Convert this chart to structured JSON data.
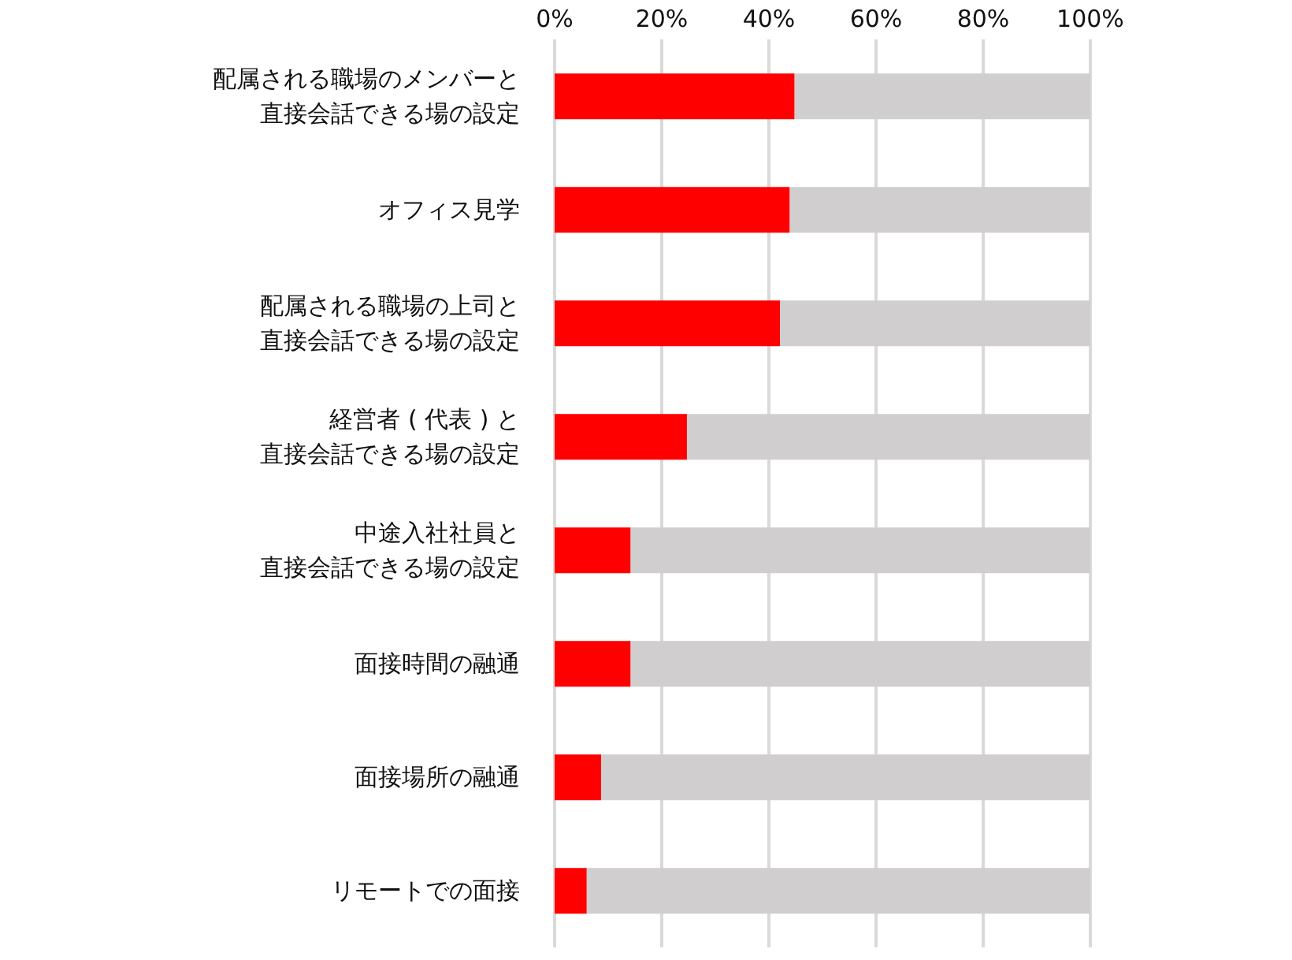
{
  "chart_data": {
    "type": "bar",
    "orientation": "horizontal",
    "stacked": true,
    "categories": [
      "配属される職場のメンバーと直接会話できる場の設定",
      "オフィス見学",
      "配属される職場の上司と直接会話できる場の設定",
      "経営者 ( 代表 ) と直接会話できる場の設定",
      "中途入社社員と直接会話できる場の設定",
      "面接時間の融通",
      "面接場所の融通",
      "リモートでの面接"
    ],
    "series": [
      {
        "color": "#ff0000",
        "values": [
          44.8,
          43.9,
          42.1,
          24.7,
          14.2,
          14.2,
          8.7,
          6.0
        ]
      },
      {
        "color": "#d0cecf",
        "values": [
          55.2,
          56.1,
          57.9,
          75.3,
          85.8,
          85.8,
          91.3,
          94.0
        ]
      }
    ],
    "xlim": [
      0,
      100
    ],
    "xticks": [
      {
        "value": 0,
        "label": "0%"
      },
      {
        "value": 20,
        "label": "20%"
      },
      {
        "value": 40,
        "label": "40%"
      },
      {
        "value": 60,
        "label": "60%"
      },
      {
        "value": 80,
        "label": "80%"
      },
      {
        "value": 100,
        "label": "100%"
      }
    ],
    "grid": "x",
    "legend": false
  }
}
